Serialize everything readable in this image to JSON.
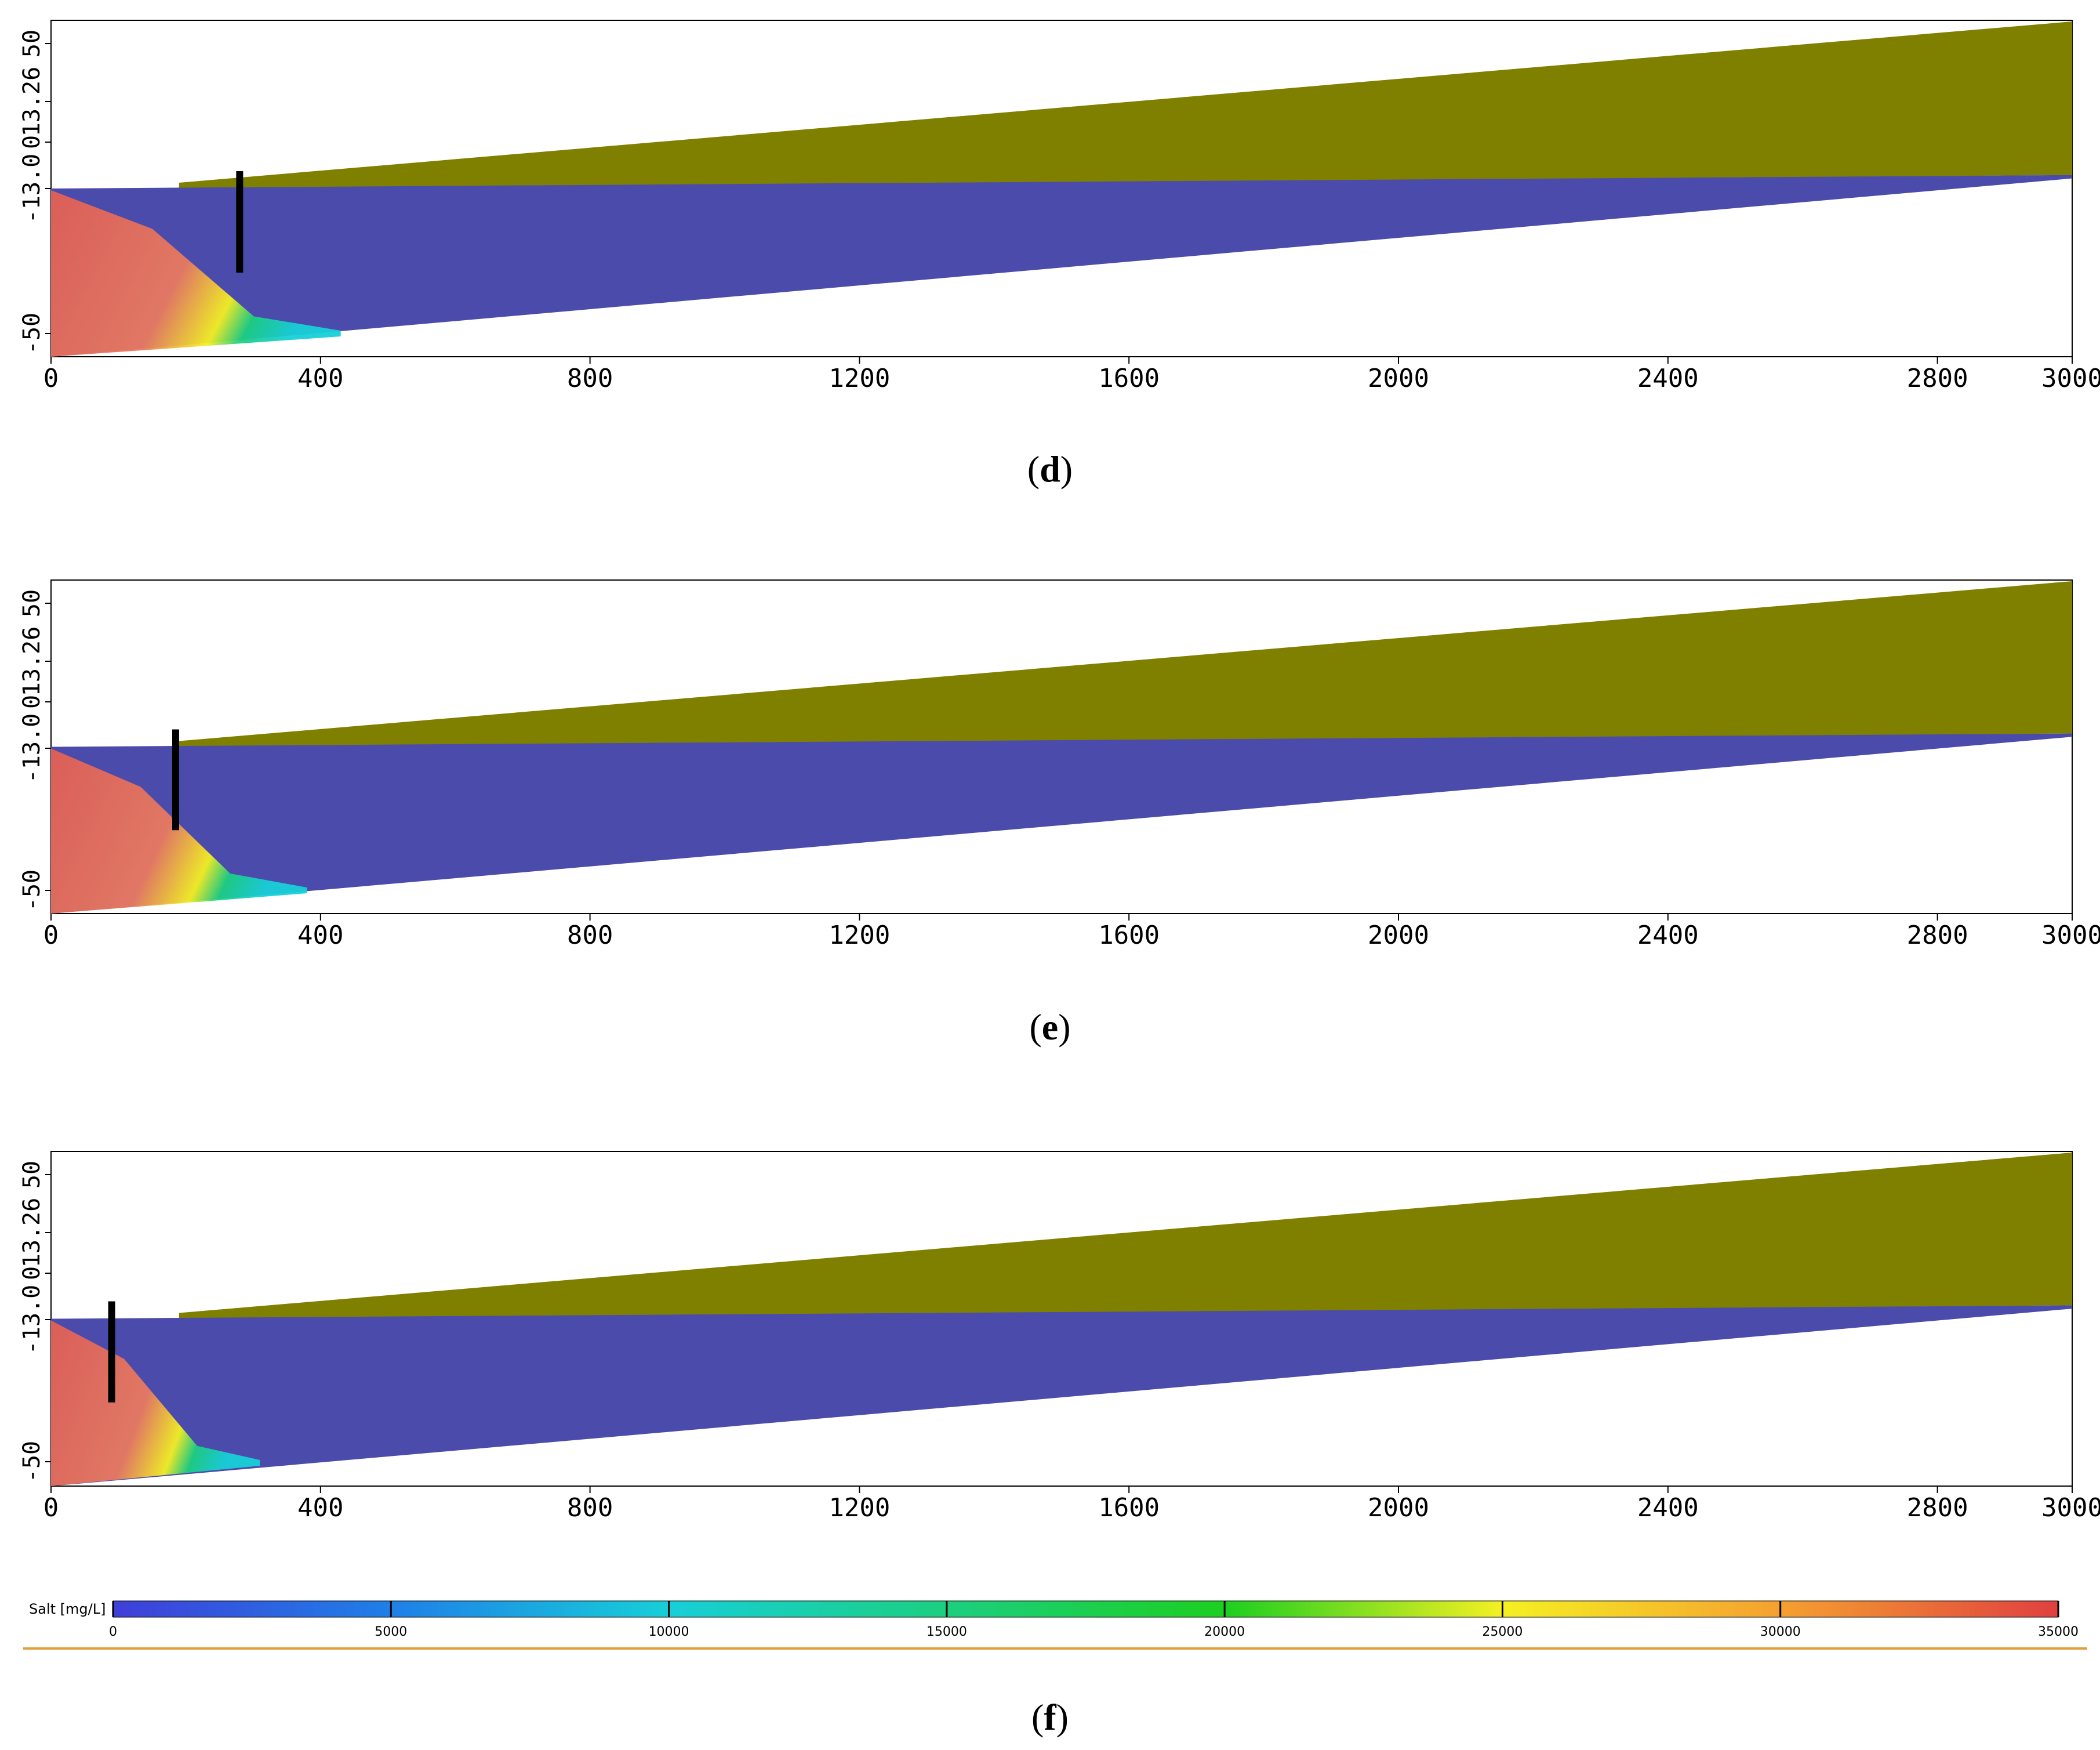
{
  "panels": [
    {
      "id": "d",
      "caption_letter": "d",
      "x_ticks": [
        "0",
        "400",
        "800",
        "1200",
        "1600",
        "2000",
        "2400",
        "2800",
        "3000"
      ],
      "y_ticks": [
        "50",
        "13.26",
        "0",
        "-13.0",
        "-50"
      ],
      "x_range": [
        0,
        3000
      ],
      "barrier_x": 280
    },
    {
      "id": "e",
      "caption_letter": "e",
      "x_ticks": [
        "0",
        "400",
        "800",
        "1200",
        "1600",
        "2000",
        "2400",
        "2800",
        "3000"
      ],
      "y_ticks": [
        "50",
        "13.26",
        "0",
        "-13.0",
        "-50"
      ],
      "x_range": [
        0,
        3000
      ],
      "barrier_x": 185
    },
    {
      "id": "f",
      "caption_letter": "f",
      "x_ticks": [
        "0",
        "400",
        "800",
        "1200",
        "1600",
        "2000",
        "2400",
        "2800",
        "3000"
      ],
      "y_ticks": [
        "50",
        "13.26",
        "0",
        "-13.0",
        "-50"
      ],
      "x_range": [
        0,
        3000
      ],
      "barrier_x": 90
    }
  ],
  "legend": {
    "label": "Salt [mg/L]",
    "ticks": [
      "0",
      "5000",
      "10000",
      "15000",
      "20000",
      "25000",
      "30000",
      "35000"
    ],
    "range": [
      0,
      35000
    ],
    "colors": [
      "#3f3fd8",
      "#1f7fe8",
      "#17cfd8",
      "#1ccf80",
      "#1ccf20",
      "#f5f022",
      "#f5a030",
      "#e04040"
    ]
  },
  "colors": {
    "unsaturated": "#808000",
    "aquifer": "#4b4bab",
    "saline": "#e25f55",
    "barrier": "#000000"
  }
}
